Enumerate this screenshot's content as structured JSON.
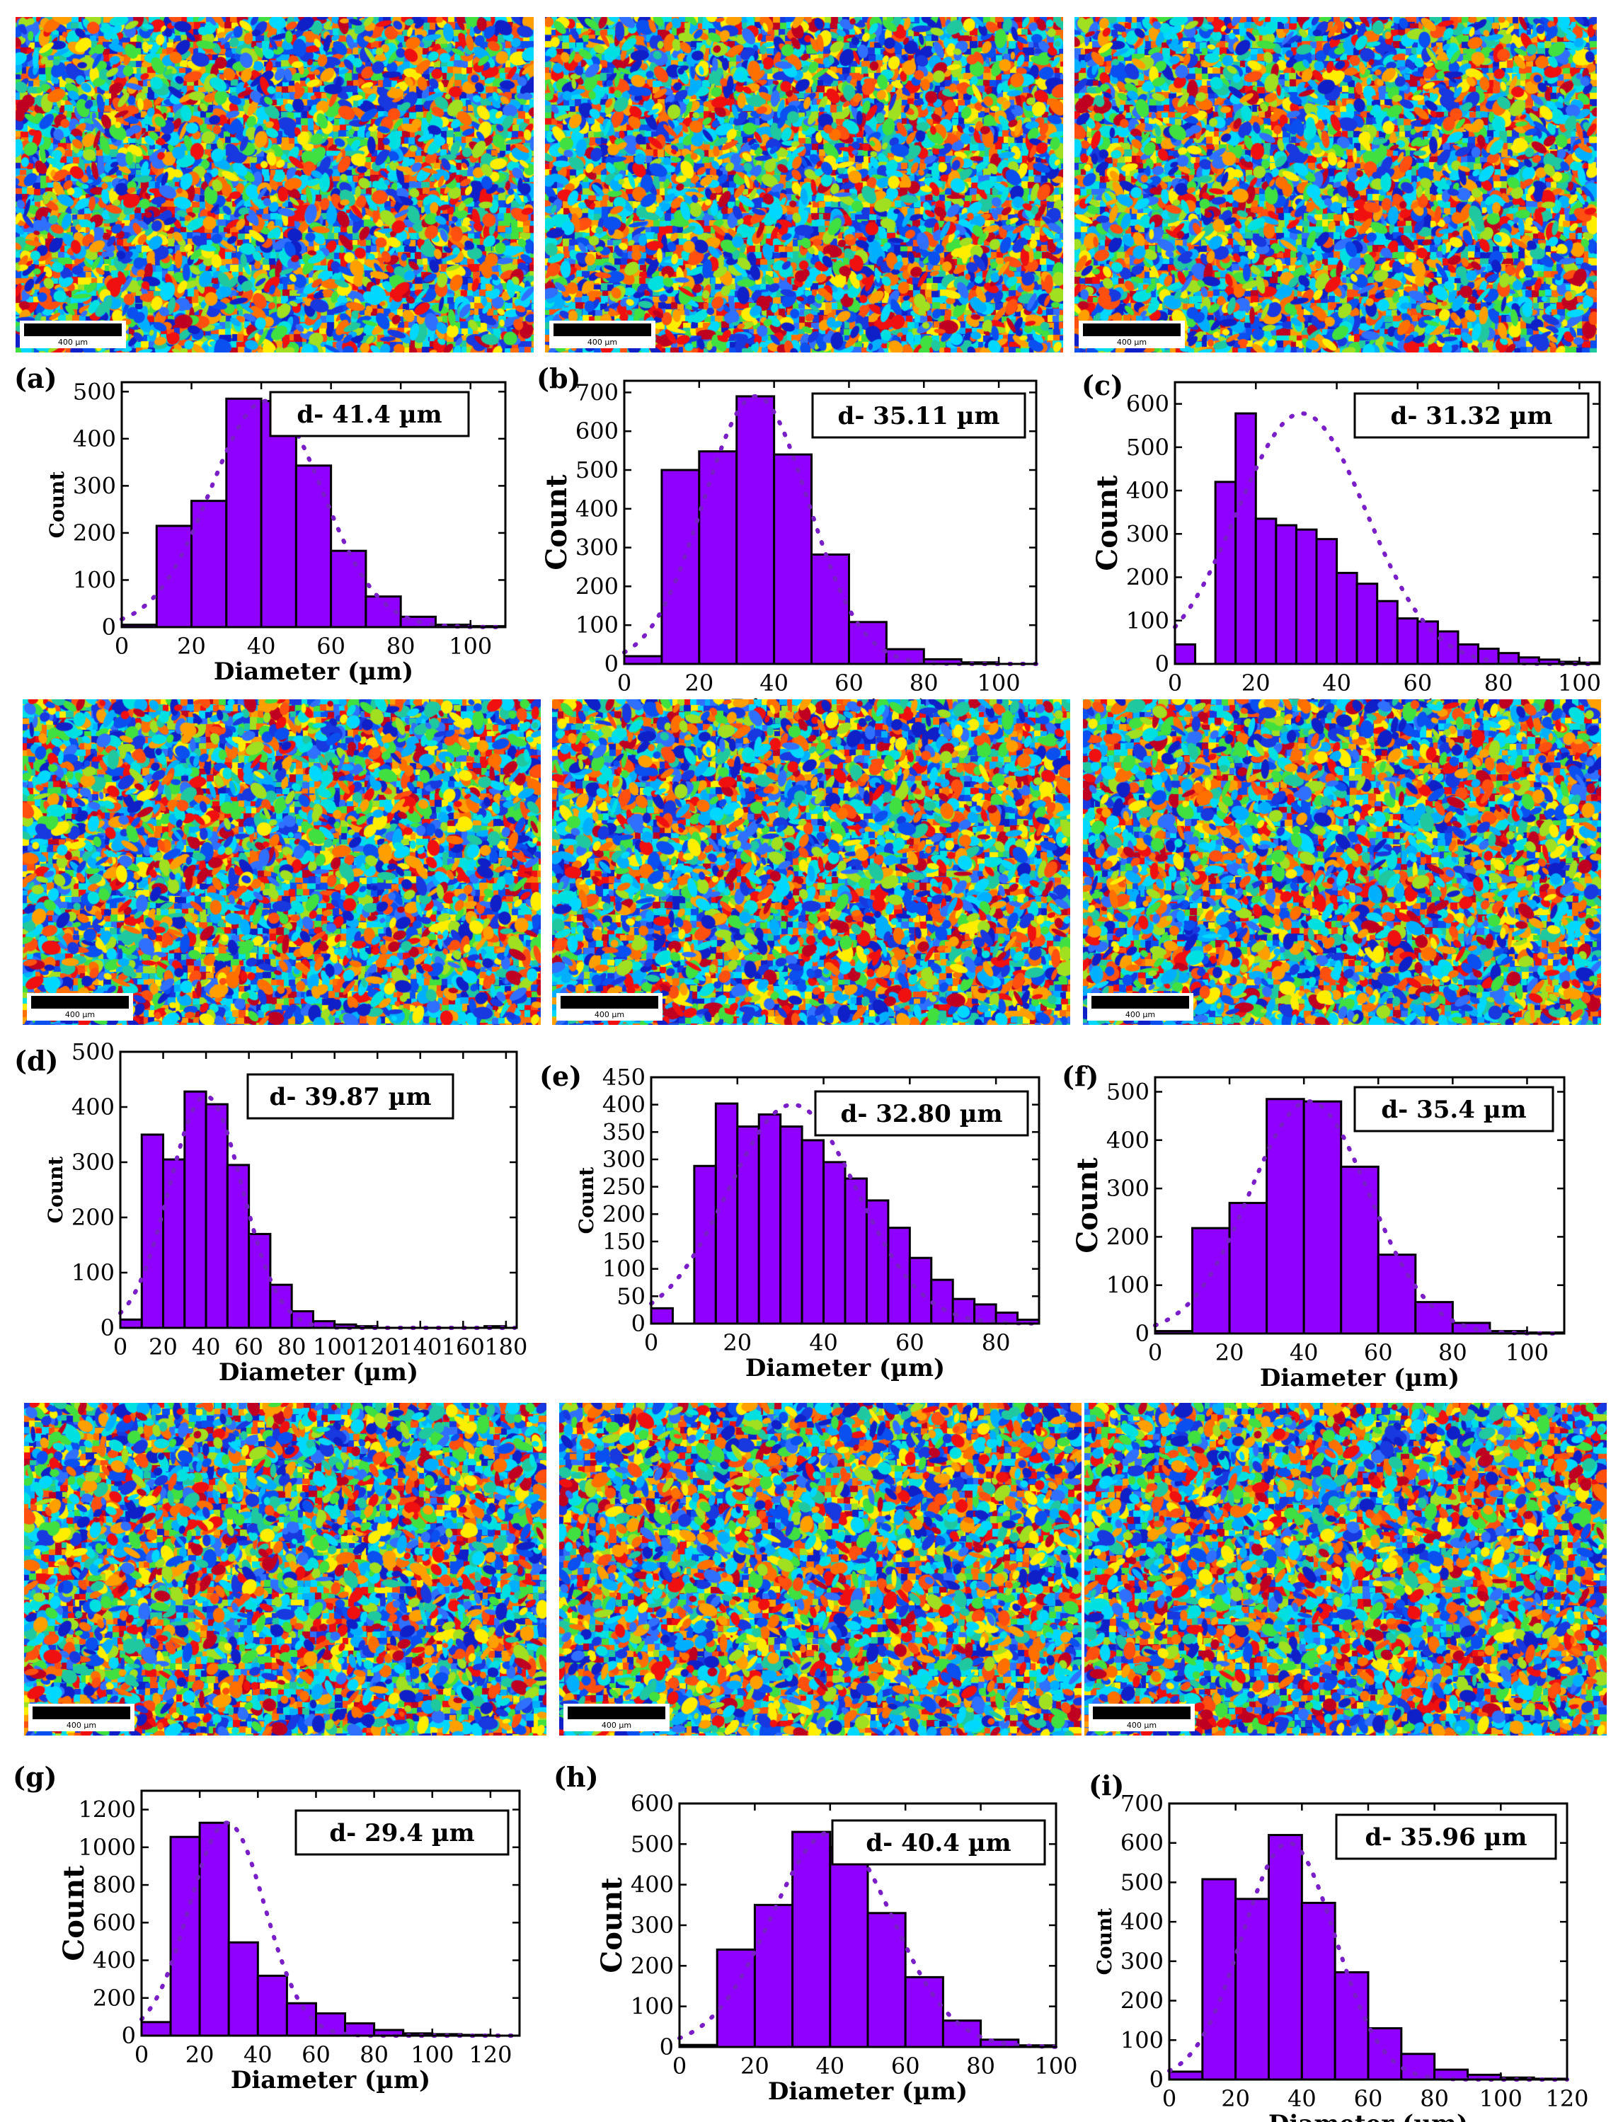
{
  "scale_bar_label": "400 µm",
  "colors": {
    "bar_fill": "#9000ff",
    "bar_stroke": "#000000",
    "fit_curve": "#7a1fc8"
  },
  "panels": [
    {
      "label": "(a)",
      "d_text": "d- 41.4 µm"
    },
    {
      "label": "(b)",
      "d_text": "d- 35.11 µm"
    },
    {
      "label": "(c)",
      "d_text": "d- 31.32 µm"
    },
    {
      "label": "(d)",
      "d_text": "d- 39.87 µm"
    },
    {
      "label": "(e)",
      "d_text": "d- 32.80 µm"
    },
    {
      "label": "(f)",
      "d_text": "d- 35.4 µm"
    },
    {
      "label": "(g)",
      "d_text": "d- 29.4 µm"
    },
    {
      "label": "(h)",
      "d_text": "d- 40.4 µm"
    },
    {
      "label": "(i)",
      "d_text": "d- 35.96 µm"
    }
  ],
  "chart_data": [
    {
      "type": "bar",
      "xlabel": "Diameter (µm)",
      "ylabel": "Count",
      "xlim": [
        0,
        110
      ],
      "ylim": [
        0,
        520
      ],
      "xticks": [
        0,
        20,
        40,
        60,
        80,
        100
      ],
      "yticks": [
        0,
        100,
        200,
        300,
        400,
        500
      ],
      "bin_width": 10,
      "bins": [
        [
          0,
          5
        ],
        [
          10,
          215
        ],
        [
          20,
          268
        ],
        [
          30,
          485
        ],
        [
          40,
          480
        ],
        [
          50,
          343
        ],
        [
          60,
          162
        ],
        [
          70,
          65
        ],
        [
          80,
          22
        ],
        [
          90,
          5
        ],
        [
          100,
          2
        ]
      ],
      "fit": {
        "mean": 41.4,
        "peak": 480,
        "sigma": 16
      }
    },
    {
      "type": "bar",
      "xlabel": "Diameter (µm)",
      "ylabel": "Count",
      "xlim": [
        0,
        110
      ],
      "ylim": [
        0,
        730
      ],
      "xticks": [
        0,
        20,
        40,
        60,
        80,
        100
      ],
      "yticks": [
        0,
        100,
        200,
        300,
        400,
        500,
        600,
        700
      ],
      "bin_width": 10,
      "bins": [
        [
          0,
          20
        ],
        [
          10,
          500
        ],
        [
          20,
          548
        ],
        [
          30,
          690
        ],
        [
          40,
          540
        ],
        [
          50,
          282
        ],
        [
          60,
          108
        ],
        [
          70,
          38
        ],
        [
          80,
          12
        ],
        [
          90,
          4
        ]
      ],
      "fit": {
        "mean": 35.11,
        "peak": 690,
        "sigma": 14
      }
    },
    {
      "type": "bar",
      "xlabel": "Diameter (µm)",
      "ylabel": "Count",
      "xlim": [
        0,
        105
      ],
      "ylim": [
        0,
        650
      ],
      "xticks": [
        0,
        20,
        40,
        60,
        80,
        100
      ],
      "yticks": [
        0,
        100,
        200,
        300,
        400,
        500,
        600
      ],
      "bin_width": 5,
      "bins": [
        [
          0,
          45
        ],
        [
          10,
          420
        ],
        [
          15,
          578
        ],
        [
          20,
          335
        ],
        [
          25,
          320
        ],
        [
          30,
          310
        ],
        [
          35,
          288
        ],
        [
          40,
          210
        ],
        [
          45,
          185
        ],
        [
          50,
          145
        ],
        [
          55,
          105
        ],
        [
          60,
          98
        ],
        [
          65,
          75
        ],
        [
          70,
          45
        ],
        [
          75,
          35
        ],
        [
          80,
          25
        ],
        [
          85,
          15
        ],
        [
          90,
          10
        ],
        [
          95,
          5
        ],
        [
          100,
          3
        ]
      ],
      "fit": {
        "mean": 31.32,
        "peak": 578,
        "sigma": 16
      }
    },
    {
      "type": "bar",
      "xlabel": "Diameter (µm)",
      "ylabel": "Count",
      "xlim": [
        0,
        185
      ],
      "ylim": [
        0,
        500
      ],
      "xticks": [
        0,
        20,
        40,
        60,
        80,
        100,
        120,
        140,
        160,
        180
      ],
      "yticks": [
        0,
        100,
        200,
        300,
        400,
        500
      ],
      "bin_width": 10,
      "bins": [
        [
          0,
          15
        ],
        [
          10,
          350
        ],
        [
          20,
          305
        ],
        [
          30,
          428
        ],
        [
          40,
          405
        ],
        [
          50,
          295
        ],
        [
          60,
          170
        ],
        [
          70,
          78
        ],
        [
          80,
          30
        ],
        [
          90,
          12
        ],
        [
          100,
          6
        ],
        [
          110,
          3
        ],
        [
          170,
          3
        ]
      ],
      "fit": {
        "mean": 39.87,
        "peak": 420,
        "sigma": 17
      }
    },
    {
      "type": "bar",
      "xlabel": "Diameter (µm)",
      "ylabel": "Count",
      "xlim": [
        0,
        90
      ],
      "ylim": [
        0,
        450
      ],
      "xticks": [
        0,
        20,
        40,
        60,
        80
      ],
      "yticks": [
        0,
        50,
        100,
        150,
        200,
        250,
        300,
        350,
        400,
        450
      ],
      "bin_width": 5,
      "bins": [
        [
          0,
          28
        ],
        [
          10,
          288
        ],
        [
          15,
          402
        ],
        [
          20,
          360
        ],
        [
          25,
          382
        ],
        [
          30,
          360
        ],
        [
          35,
          335
        ],
        [
          40,
          295
        ],
        [
          45,
          265
        ],
        [
          50,
          225
        ],
        [
          55,
          175
        ],
        [
          60,
          120
        ],
        [
          65,
          80
        ],
        [
          70,
          45
        ],
        [
          75,
          35
        ],
        [
          80,
          20
        ],
        [
          85,
          7
        ]
      ],
      "fit": {
        "mean": 32.8,
        "peak": 400,
        "sigma": 15
      }
    },
    {
      "type": "bar",
      "xlabel": "Diameter (µm)",
      "ylabel": "Count",
      "xlim": [
        0,
        110
      ],
      "ylim": [
        0,
        530
      ],
      "xticks": [
        0,
        20,
        40,
        60,
        80,
        100
      ],
      "yticks": [
        0,
        100,
        200,
        300,
        400,
        500
      ],
      "bin_width": 10,
      "bins": [
        [
          0,
          5
        ],
        [
          10,
          218
        ],
        [
          20,
          270
        ],
        [
          30,
          485
        ],
        [
          40,
          480
        ],
        [
          50,
          345
        ],
        [
          60,
          163
        ],
        [
          70,
          65
        ],
        [
          80,
          22
        ],
        [
          90,
          5
        ],
        [
          100,
          2
        ]
      ],
      "fit": {
        "mean": 41.4,
        "peak": 480,
        "sigma": 16
      }
    },
    {
      "type": "bar",
      "xlabel": "Diameter (µm)",
      "ylabel": "Count",
      "xlim": [
        0,
        130
      ],
      "ylim": [
        0,
        1300
      ],
      "xticks": [
        0,
        20,
        40,
        60,
        80,
        100,
        120
      ],
      "yticks": [
        0,
        200,
        400,
        600,
        800,
        1000,
        1200
      ],
      "bin_width": 10,
      "bins": [
        [
          0,
          72
        ],
        [
          10,
          1055
        ],
        [
          20,
          1130
        ],
        [
          30,
          495
        ],
        [
          40,
          318
        ],
        [
          50,
          172
        ],
        [
          60,
          118
        ],
        [
          70,
          65
        ],
        [
          80,
          30
        ],
        [
          90,
          12
        ],
        [
          100,
          8
        ],
        [
          110,
          4
        ]
      ],
      "fit": {
        "mean": 29.4,
        "peak": 1130,
        "sigma": 13
      }
    },
    {
      "type": "bar",
      "xlabel": "Diameter (µm)",
      "ylabel": "Count",
      "xlim": [
        0,
        100
      ],
      "ylim": [
        0,
        600
      ],
      "xticks": [
        0,
        20,
        40,
        60,
        80,
        100
      ],
      "yticks": [
        0,
        100,
        200,
        300,
        400,
        500,
        600
      ],
      "bin_width": 10,
      "bins": [
        [
          0,
          5
        ],
        [
          10,
          240
        ],
        [
          20,
          350
        ],
        [
          30,
          530
        ],
        [
          40,
          492
        ],
        [
          50,
          330
        ],
        [
          60,
          172
        ],
        [
          70,
          65
        ],
        [
          80,
          18
        ],
        [
          90,
          4
        ]
      ],
      "fit": {
        "mean": 40.4,
        "peak": 530,
        "sigma": 16
      }
    },
    {
      "type": "bar",
      "xlabel": "Diameter (µm)",
      "ylabel": "Count",
      "xlim": [
        0,
        120
      ],
      "ylim": [
        0,
        700
      ],
      "xticks": [
        0,
        20,
        40,
        60,
        80,
        100,
        120
      ],
      "yticks": [
        0,
        100,
        200,
        300,
        400,
        500,
        600,
        700
      ],
      "bin_width": 10,
      "bins": [
        [
          0,
          20
        ],
        [
          10,
          508
        ],
        [
          20,
          458
        ],
        [
          30,
          620
        ],
        [
          40,
          448
        ],
        [
          50,
          272
        ],
        [
          60,
          130
        ],
        [
          70,
          65
        ],
        [
          80,
          25
        ],
        [
          90,
          12
        ],
        [
          100,
          5
        ],
        [
          110,
          2
        ]
      ],
      "fit": {
        "mean": 35.96,
        "peak": 600,
        "sigma": 14
      }
    }
  ]
}
